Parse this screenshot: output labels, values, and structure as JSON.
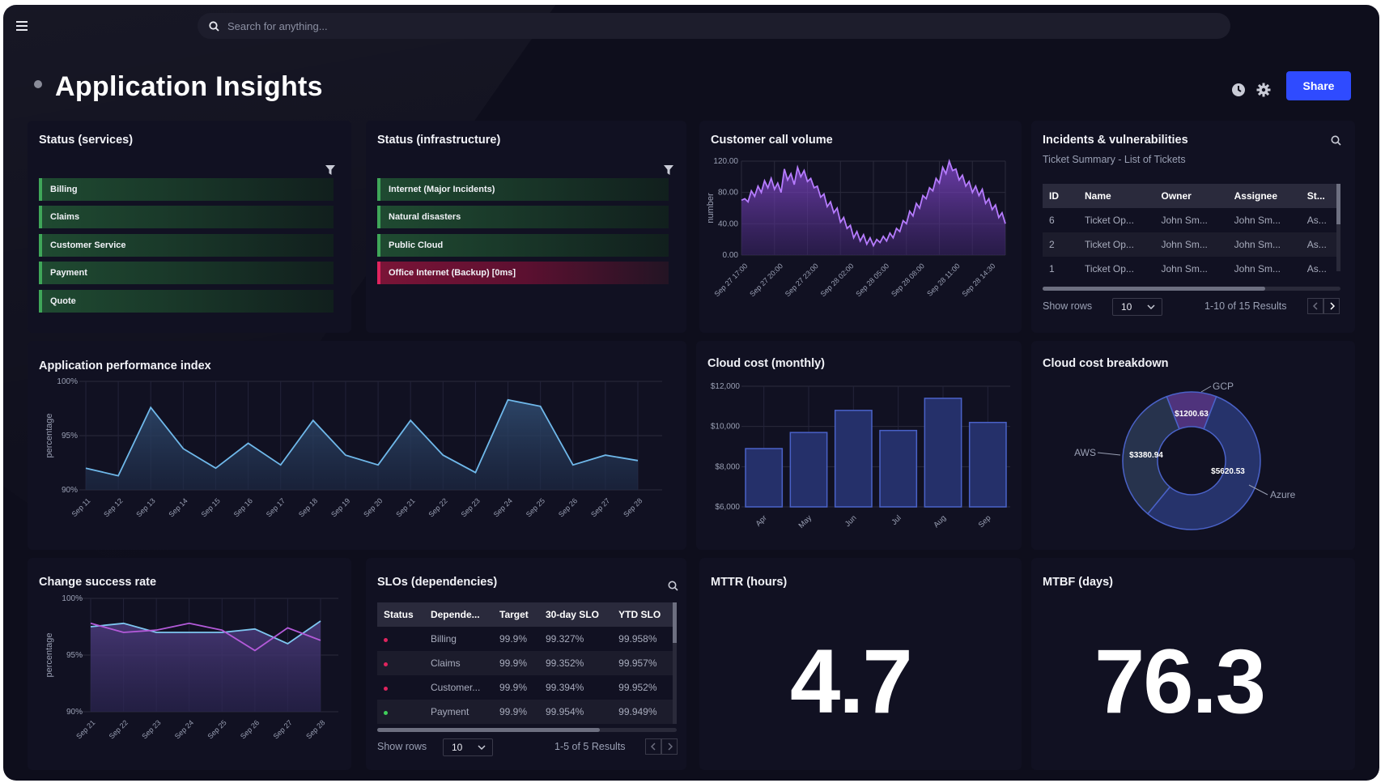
{
  "search": {
    "placeholder": "Search for anything..."
  },
  "page": {
    "title": "Application Insights",
    "share_label": "Share"
  },
  "status_services": {
    "title": "Status (services)",
    "items": [
      "Billing",
      "Claims",
      "Customer Service",
      "Payment",
      "Quote"
    ]
  },
  "status_infra": {
    "title": "Status (infrastructure)",
    "items": [
      {
        "label": "Internet (Major Incidents)",
        "state": "ok"
      },
      {
        "label": "Natural disasters",
        "state": "ok"
      },
      {
        "label": "Public Cloud",
        "state": "ok"
      },
      {
        "label": "Office Internet (Backup) [0ms]",
        "state": "alert"
      }
    ]
  },
  "call_volume": {
    "title": "Customer call volume",
    "chart_data": {
      "type": "area",
      "ylabel": "number",
      "y_ticks": [
        "120.00",
        "80.00",
        "40.00",
        "0.00"
      ],
      "ylim": [
        0,
        120
      ],
      "x_ticks": [
        "Sep 27 17:00",
        "Sep 27 20:00",
        "Sep 27 23:00",
        "Sep 28 02:00",
        "Sep 28 05:00",
        "Sep 28 08:00",
        "Sep 28 11:00",
        "Sep 28 14:30"
      ],
      "values": [
        70,
        72,
        68,
        82,
        75,
        88,
        80,
        95,
        86,
        98,
        84,
        92,
        80,
        110,
        96,
        104,
        90,
        112,
        100,
        108,
        94,
        98,
        86,
        88,
        74,
        78,
        62,
        68,
        54,
        60,
        42,
        48,
        34,
        38,
        22,
        30,
        18,
        26,
        14,
        22,
        12,
        20,
        16,
        24,
        18,
        28,
        22,
        34,
        30,
        44,
        40,
        56,
        50,
        66,
        60,
        76,
        72,
        86,
        82,
        98,
        92,
        112,
        104,
        120,
        108,
        110,
        96,
        102,
        88,
        94,
        80,
        88,
        76,
        84,
        66,
        72,
        58,
        64,
        48,
        54,
        40
      ]
    }
  },
  "incidents": {
    "title": "Incidents & vulnerabilities",
    "subtitle": "Ticket Summary - List of Tickets",
    "columns": [
      "ID",
      "Name",
      "Owner",
      "Assignee",
      "St..."
    ],
    "rows": [
      [
        "6",
        "Ticket Op...",
        "John Sm...",
        "John Sm...",
        "As..."
      ],
      [
        "2",
        "Ticket Op...",
        "John Sm...",
        "John Sm...",
        "As..."
      ],
      [
        "1",
        "Ticket Op...",
        "John Sm...",
        "John Sm...",
        "As..."
      ]
    ],
    "show_rows_label": "Show rows",
    "rows_value": "10",
    "results": "1-10 of 15 Results"
  },
  "apdex": {
    "title": "Application performance index",
    "chart_data": {
      "type": "area",
      "ylabel": "percentage",
      "y_ticks": [
        "100%",
        "95%",
        "90%"
      ],
      "ylim": [
        90,
        100
      ],
      "categories": [
        "Sep 11",
        "Sep 12",
        "Sep 13",
        "Sep 14",
        "Sep 15",
        "Sep 16",
        "Sep 17",
        "Sep 18",
        "Sep 19",
        "Sep 20",
        "Sep 21",
        "Sep 22",
        "Sep 23",
        "Sep 24",
        "Sep 25",
        "Sep 26",
        "Sep 27",
        "Sep 28"
      ],
      "values": [
        92.0,
        91.3,
        97.6,
        93.8,
        92.0,
        94.3,
        92.3,
        96.4,
        93.2,
        92.3,
        96.4,
        93.2,
        91.6,
        98.3,
        97.7,
        92.3,
        93.2,
        92.7
      ]
    }
  },
  "cloud_cost": {
    "title": "Cloud cost (monthly)",
    "chart_data": {
      "type": "bar",
      "y_ticks": [
        "$12,000",
        "$10,000",
        "$8,000",
        "$6,000"
      ],
      "ylim": [
        6000,
        12000
      ],
      "categories": [
        "Apr",
        "May",
        "Jun",
        "Jul",
        "Aug",
        "Sep"
      ],
      "values": [
        8900,
        9700,
        10800,
        9800,
        11400,
        10200
      ]
    }
  },
  "cost_breakdown": {
    "title": "Cloud cost breakdown",
    "chart_data": {
      "type": "pie",
      "slices": [
        {
          "name": "GCP",
          "label": "$1200.63",
          "value": 1200.63,
          "color": "#5b3a8c"
        },
        {
          "name": "Azure",
          "label": "$5620.53",
          "value": 5620.53,
          "color": "#2a3a78"
        },
        {
          "name": "AWS",
          "label": "$3380.94",
          "value": 3380.94,
          "color": "#2b3a55"
        }
      ]
    }
  },
  "change_rate": {
    "title": "Change success rate",
    "chart_data": {
      "type": "line",
      "ylabel": "percentage",
      "y_ticks": [
        "100%",
        "95%",
        "90%"
      ],
      "ylim": [
        90,
        100
      ],
      "categories": [
        "Sep 21",
        "Sep 22",
        "Sep 23",
        "Sep 24",
        "Sep 25",
        "Sep 26",
        "Sep 27",
        "Sep 28"
      ],
      "series": [
        {
          "values": [
            97.5,
            97.8,
            97.0,
            97.0,
            97.0,
            97.3,
            96.0,
            98.0
          ],
          "color": "#7ec6f0"
        },
        {
          "values": [
            97.8,
            97.0,
            97.2,
            97.8,
            97.2,
            95.4,
            97.4,
            96.3
          ],
          "color": "#b35ad9"
        }
      ]
    }
  },
  "slos": {
    "title": "SLOs (dependencies)",
    "columns": [
      "Status",
      "Depende...",
      "Target",
      "30-day SLO",
      "YTD SLO"
    ],
    "rows": [
      {
        "status": "#e0245e",
        "name": "Billing",
        "target": "99.9%",
        "d30": "99.327%",
        "ytd": "99.958%"
      },
      {
        "status": "#e0245e",
        "name": "Claims",
        "target": "99.9%",
        "d30": "99.352%",
        "ytd": "99.957%"
      },
      {
        "status": "#e0245e",
        "name": "Customer...",
        "target": "99.9%",
        "d30": "99.394%",
        "ytd": "99.952%"
      },
      {
        "status": "#3fcf5a",
        "name": "Payment",
        "target": "99.9%",
        "d30": "99.954%",
        "ytd": "99.949%"
      }
    ],
    "show_rows_label": "Show rows",
    "rows_value": "10",
    "results": "1-5 of 5 Results"
  },
  "mttr": {
    "title": "MTTR (hours)",
    "value": "4.7"
  },
  "mtbf": {
    "title": "MTBF (days)",
    "value": "76.3"
  }
}
